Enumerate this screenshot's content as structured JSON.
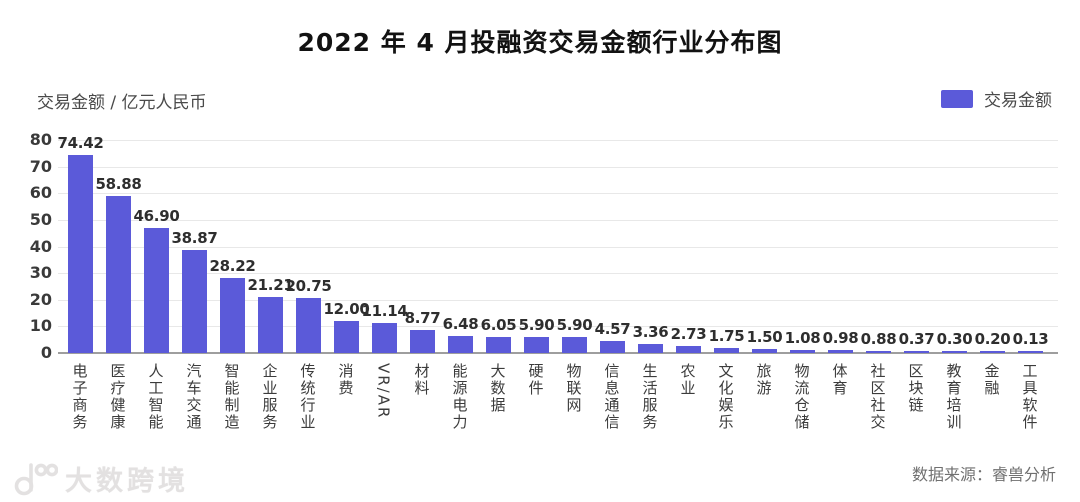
{
  "source": "数据来源：睿兽分析",
  "watermark": "大数跨境",
  "chart_data": {
    "type": "bar",
    "title": "2022 年 4 月投融资交易金额行业分布图",
    "ylabel": "交易金额 / 亿元人民币",
    "xlabel": "",
    "legend": [
      "交易金额"
    ],
    "legend_position": "top-right",
    "grid": true,
    "value_labels": true,
    "value_label_decimals": 2,
    "ylim": [
      0,
      80
    ],
    "yticks": [
      0,
      10,
      20,
      30,
      40,
      50,
      60,
      70,
      80
    ],
    "bar_color": "#5b5ad9",
    "grid_color": "#e8e8e8",
    "axis_color": "#9e9e9e",
    "categories": [
      "电子商务",
      "医疗健康",
      "人工智能",
      "汽车交通",
      "智能制造",
      "企业服务",
      "传统行业",
      "消费",
      "VR/AR",
      "材料",
      "能源电力",
      "大数据",
      "硬件",
      "物联网",
      "信息通信",
      "生活服务",
      "农业",
      "文化娱乐",
      "旅游",
      "物流仓储",
      "体育",
      "社区社交",
      "区块链",
      "教育培训",
      "金融",
      "工具软件"
    ],
    "values": [
      74.42,
      58.88,
      46.9,
      38.87,
      28.22,
      21.21,
      20.75,
      12.0,
      11.14,
      8.77,
      6.48,
      6.05,
      5.9,
      5.9,
      4.57,
      3.36,
      2.73,
      1.75,
      1.5,
      1.08,
      0.98,
      0.88,
      0.37,
      0.3,
      0.2,
      0.13
    ]
  }
}
